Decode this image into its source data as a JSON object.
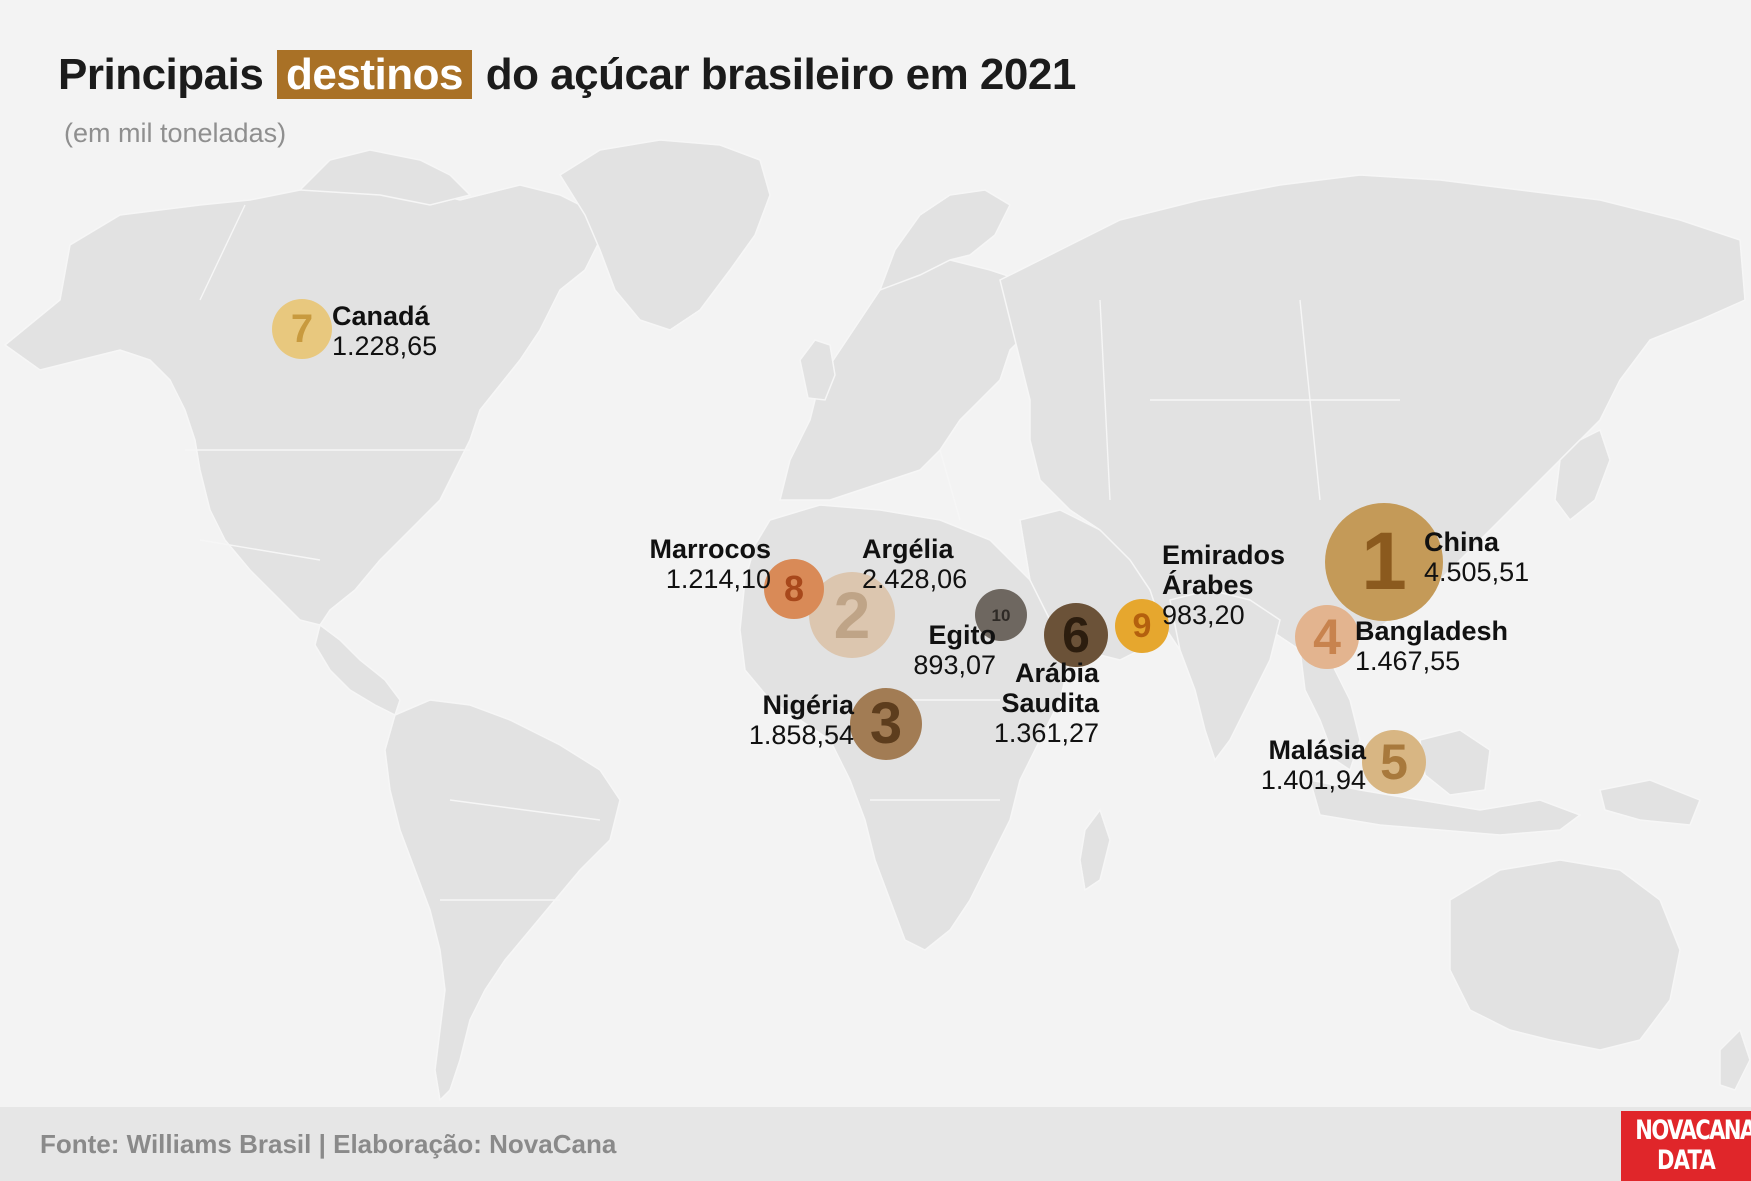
{
  "title": {
    "before": "Principais",
    "highlight": "destinos",
    "after": "do açúcar brasileiro em 2021"
  },
  "subtitle": "(em mil toneladas)",
  "colors": {
    "highlight_bg": "#a97126",
    "land": "#e2e2e2",
    "background": "#f3f3f3",
    "logo_bg": "#e0262a"
  },
  "destinations": [
    {
      "rank": "1",
      "name": "China",
      "value": "4.505,51",
      "color": "#c49a58",
      "num_color": "#8b5a1e"
    },
    {
      "rank": "2",
      "name": "Argélia",
      "value": "2.428,06",
      "color": "#dcc6af",
      "num_color": "#bfa487"
    },
    {
      "rank": "3",
      "name": "Nigéria",
      "value": "1.858,54",
      "color": "#a27c54",
      "num_color": "#5d3d1d"
    },
    {
      "rank": "4",
      "name": "Bangladesh",
      "value": "1.467,55",
      "color": "#e3b48f",
      "num_color": "#c8834e"
    },
    {
      "rank": "5",
      "name": "Malásia",
      "value": "1.401,94",
      "color": "#d8b683",
      "num_color": "#a8793c"
    },
    {
      "rank": "6",
      "name": "Arábia Saudita",
      "name_line1": "Arábia",
      "name_line2": "Saudita",
      "value": "1.361,27",
      "color": "#6b5238",
      "num_color": "#2c1d0e"
    },
    {
      "rank": "7",
      "name": "Canadá",
      "value": "1.228,65",
      "color": "#e8c87e",
      "num_color": "#c89a3e"
    },
    {
      "rank": "8",
      "name": "Marrocos",
      "value": "1.214,10",
      "color": "#d98a57",
      "num_color": "#a8481b"
    },
    {
      "rank": "9",
      "name": "Emirados Árabes",
      "name_line1": "Emirados",
      "name_line2": "Árabes",
      "value": "983,20",
      "color": "#e6a72e",
      "num_color": "#b4600e"
    },
    {
      "rank": "10",
      "name": "Egito",
      "value": "893,07",
      "color": "#6e6760",
      "num_color": "#2e2a26"
    }
  ],
  "footer": {
    "source": "Fonte: Williams Brasil | Elaboração: NovaCana"
  },
  "logo": {
    "line1": "NOVACANA",
    "line2": "DATA"
  }
}
